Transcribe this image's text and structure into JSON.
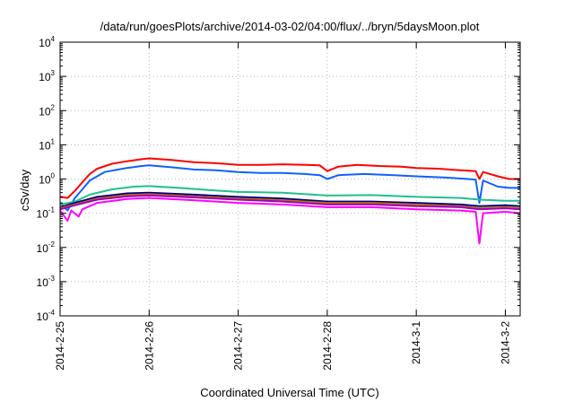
{
  "chart_data": {
    "type": "line",
    "title": "/data/run/goesPlots/archive/2014-03-02/04:00/flux/../bryn/5daysMoon.plot",
    "xlabel": "Coordinated Universal Time (UTC)",
    "ylabel": "cSv/day",
    "yscale": "log",
    "ylim": [
      0.0001,
      10000
    ],
    "yticks": [
      {
        "base": "10",
        "exp": "-4"
      },
      {
        "base": "10",
        "exp": "-3"
      },
      {
        "base": "10",
        "exp": "-2"
      },
      {
        "base": "10",
        "exp": "-1"
      },
      {
        "base": "10",
        "exp": "0"
      },
      {
        "base": "10",
        "exp": "1"
      },
      {
        "base": "10",
        "exp": "2"
      },
      {
        "base": "10",
        "exp": "3"
      },
      {
        "base": "10",
        "exp": "4"
      }
    ],
    "xlim": [
      "2014-02-25T00:00",
      "2014-03-02T04:00"
    ],
    "xticks": [
      "2014-2-25",
      "2014-2-26",
      "2014-2-27",
      "2014-2-28",
      "2014-3-1",
      "2014-3-2"
    ],
    "grid": true,
    "series": [
      {
        "color": "#ff0000",
        "points": [
          [
            "2014-02-25T00:00",
            0.3
          ],
          [
            "2014-02-25T02:00",
            0.28
          ],
          [
            "2014-02-25T04:00",
            0.45
          ],
          [
            "2014-02-25T06:00",
            0.8
          ],
          [
            "2014-02-25T08:00",
            1.4
          ],
          [
            "2014-02-25T10:00",
            2.0
          ],
          [
            "2014-02-25T14:00",
            2.8
          ],
          [
            "2014-02-25T18:00",
            3.3
          ],
          [
            "2014-02-25T22:00",
            3.8
          ],
          [
            "2014-02-26T00:00",
            4.0
          ],
          [
            "2014-02-26T06:00",
            3.6
          ],
          [
            "2014-02-26T12:00",
            3.1
          ],
          [
            "2014-02-26T18:00",
            2.9
          ],
          [
            "2014-02-27T00:00",
            2.6
          ],
          [
            "2014-02-27T06:00",
            2.6
          ],
          [
            "2014-02-27T12:00",
            2.7
          ],
          [
            "2014-02-27T18:00",
            2.6
          ],
          [
            "2014-02-27T22:00",
            2.5
          ],
          [
            "2014-02-28T00:00",
            1.7
          ],
          [
            "2014-02-28T03:00",
            2.3
          ],
          [
            "2014-02-28T08:00",
            2.6
          ],
          [
            "2014-02-28T14:00",
            2.4
          ],
          [
            "2014-02-28T20:00",
            2.3
          ],
          [
            "2014-03-01T00:00",
            2.1
          ],
          [
            "2014-03-01T06:00",
            2.0
          ],
          [
            "2014-03-01T12:00",
            1.8
          ],
          [
            "2014-03-01T16:00",
            1.7
          ],
          [
            "2014-03-01T17:00",
            1.0
          ],
          [
            "2014-03-01T18:00",
            1.6
          ],
          [
            "2014-03-01T22:00",
            1.2
          ],
          [
            "2014-03-02T01:00",
            1.0
          ],
          [
            "2014-03-02T04:00",
            1.0
          ]
        ]
      },
      {
        "color": "#1060ff",
        "points": [
          [
            "2014-02-25T00:00",
            0.2
          ],
          [
            "2014-02-25T02:00",
            0.12
          ],
          [
            "2014-02-25T04:00",
            0.28
          ],
          [
            "2014-02-25T06:00",
            0.5
          ],
          [
            "2014-02-25T08:00",
            0.9
          ],
          [
            "2014-02-25T12:00",
            1.6
          ],
          [
            "2014-02-25T18:00",
            2.1
          ],
          [
            "2014-02-25T22:00",
            2.4
          ],
          [
            "2014-02-26T00:00",
            2.5
          ],
          [
            "2014-02-26T06:00",
            2.2
          ],
          [
            "2014-02-26T12:00",
            1.9
          ],
          [
            "2014-02-26T18:00",
            1.8
          ],
          [
            "2014-02-27T00:00",
            1.6
          ],
          [
            "2014-02-27T06:00",
            1.5
          ],
          [
            "2014-02-27T12:00",
            1.5
          ],
          [
            "2014-02-27T18:00",
            1.4
          ],
          [
            "2014-02-27T22:00",
            1.3
          ],
          [
            "2014-02-28T00:00",
            1.0
          ],
          [
            "2014-02-28T03:00",
            1.3
          ],
          [
            "2014-02-28T10:00",
            1.4
          ],
          [
            "2014-02-28T18:00",
            1.3
          ],
          [
            "2014-03-01T00:00",
            1.2
          ],
          [
            "2014-03-01T08:00",
            1.1
          ],
          [
            "2014-03-01T14:00",
            1.0
          ],
          [
            "2014-03-01T16:00",
            0.95
          ],
          [
            "2014-03-01T17:00",
            0.2
          ],
          [
            "2014-03-01T18:00",
            0.9
          ],
          [
            "2014-03-01T22:00",
            0.6
          ],
          [
            "2014-03-02T01:00",
            0.55
          ],
          [
            "2014-03-02T04:00",
            0.55
          ]
        ]
      },
      {
        "color": "#20c090",
        "points": [
          [
            "2014-02-25T00:00",
            0.18
          ],
          [
            "2014-02-25T04:00",
            0.22
          ],
          [
            "2014-02-25T08:00",
            0.35
          ],
          [
            "2014-02-25T14:00",
            0.5
          ],
          [
            "2014-02-25T20:00",
            0.6
          ],
          [
            "2014-02-26T00:00",
            0.62
          ],
          [
            "2014-02-26T08:00",
            0.55
          ],
          [
            "2014-02-26T16:00",
            0.48
          ],
          [
            "2014-02-27T00:00",
            0.42
          ],
          [
            "2014-02-27T12:00",
            0.4
          ],
          [
            "2014-02-28T00:00",
            0.33
          ],
          [
            "2014-02-28T12:00",
            0.34
          ],
          [
            "2014-03-01T00:00",
            0.3
          ],
          [
            "2014-03-01T12:00",
            0.28
          ],
          [
            "2014-03-01T17:00",
            0.25
          ],
          [
            "2014-03-02T00:00",
            0.23
          ],
          [
            "2014-03-02T04:00",
            0.23
          ]
        ]
      },
      {
        "color": "#000080",
        "points": [
          [
            "2014-02-25T00:00",
            0.15
          ],
          [
            "2014-02-25T04:00",
            0.2
          ],
          [
            "2014-02-25T10:00",
            0.3
          ],
          [
            "2014-02-25T18:00",
            0.38
          ],
          [
            "2014-02-26T00:00",
            0.4
          ],
          [
            "2014-02-26T12:00",
            0.35
          ],
          [
            "2014-02-27T00:00",
            0.3
          ],
          [
            "2014-02-27T12:00",
            0.27
          ],
          [
            "2014-02-28T00:00",
            0.22
          ],
          [
            "2014-02-28T12:00",
            0.22
          ],
          [
            "2014-03-01T00:00",
            0.2
          ],
          [
            "2014-03-01T12:00",
            0.18
          ],
          [
            "2014-03-01T17:00",
            0.16
          ],
          [
            "2014-03-02T00:00",
            0.17
          ],
          [
            "2014-03-02T04:00",
            0.16
          ]
        ]
      },
      {
        "color": "#c07000",
        "points": [
          [
            "2014-02-25T00:00",
            0.14
          ],
          [
            "2014-02-25T04:00",
            0.18
          ],
          [
            "2014-02-25T10:00",
            0.27
          ],
          [
            "2014-02-25T18:00",
            0.34
          ],
          [
            "2014-02-26T00:00",
            0.36
          ],
          [
            "2014-02-26T12:00",
            0.31
          ],
          [
            "2014-02-27T00:00",
            0.27
          ],
          [
            "2014-02-27T12:00",
            0.24
          ],
          [
            "2014-02-28T00:00",
            0.2
          ],
          [
            "2014-02-28T12:00",
            0.2
          ],
          [
            "2014-03-01T00:00",
            0.18
          ],
          [
            "2014-03-01T12:00",
            0.16
          ],
          [
            "2014-03-01T17:00",
            0.14
          ],
          [
            "2014-03-02T00:00",
            0.15
          ],
          [
            "2014-03-02T04:00",
            0.14
          ]
        ]
      },
      {
        "color": "#a000c0",
        "points": [
          [
            "2014-02-25T00:00",
            0.13
          ],
          [
            "2014-02-25T04:00",
            0.17
          ],
          [
            "2014-02-25T10:00",
            0.25
          ],
          [
            "2014-02-25T18:00",
            0.31
          ],
          [
            "2014-02-26T00:00",
            0.33
          ],
          [
            "2014-02-26T12:00",
            0.29
          ],
          [
            "2014-02-27T00:00",
            0.25
          ],
          [
            "2014-02-27T12:00",
            0.22
          ],
          [
            "2014-02-28T00:00",
            0.18
          ],
          [
            "2014-02-28T12:00",
            0.18
          ],
          [
            "2014-03-01T00:00",
            0.16
          ],
          [
            "2014-03-01T12:00",
            0.15
          ],
          [
            "2014-03-01T17:00",
            0.13
          ],
          [
            "2014-03-02T00:00",
            0.14
          ],
          [
            "2014-03-02T04:00",
            0.13
          ]
        ]
      },
      {
        "color": "#ff00ff",
        "points": [
          [
            "2014-02-25T00:00",
            0.12
          ],
          [
            "2014-02-25T02:00",
            0.06
          ],
          [
            "2014-02-25T03:00",
            0.12
          ],
          [
            "2014-02-25T05:00",
            0.08
          ],
          [
            "2014-02-25T06:00",
            0.13
          ],
          [
            "2014-02-25T10:00",
            0.2
          ],
          [
            "2014-02-25T18:00",
            0.26
          ],
          [
            "2014-02-26T00:00",
            0.28
          ],
          [
            "2014-02-26T12:00",
            0.24
          ],
          [
            "2014-02-27T00:00",
            0.2
          ],
          [
            "2014-02-27T12:00",
            0.18
          ],
          [
            "2014-02-28T00:00",
            0.15
          ],
          [
            "2014-02-28T12:00",
            0.15
          ],
          [
            "2014-03-01T00:00",
            0.13
          ],
          [
            "2014-03-01T12:00",
            0.12
          ],
          [
            "2014-03-01T16:00",
            0.11
          ],
          [
            "2014-03-01T17:00",
            0.013
          ],
          [
            "2014-03-01T18:00",
            0.1
          ],
          [
            "2014-03-02T00:00",
            0.11
          ],
          [
            "2014-03-02T04:00",
            0.1
          ]
        ]
      }
    ]
  }
}
